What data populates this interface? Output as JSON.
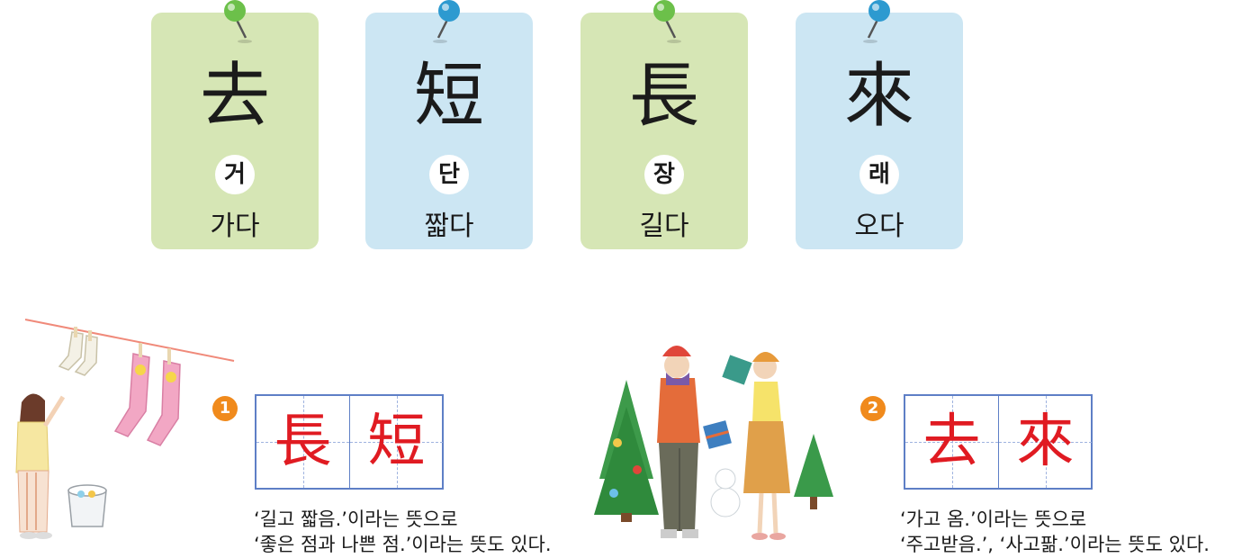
{
  "cards": [
    {
      "hanja": "去",
      "reading": "거",
      "meaning": "가다",
      "color": "#d6e6b5",
      "pin_color": "#6cc04a"
    },
    {
      "hanja": "短",
      "reading": "단",
      "meaning": "짧다",
      "color": "#cce6f3",
      "pin_color": "#2d9ad0"
    },
    {
      "hanja": "長",
      "reading": "장",
      "meaning": "길다",
      "color": "#d6e6b5",
      "pin_color": "#6cc04a"
    },
    {
      "hanja": "來",
      "reading": "래",
      "meaning": "오다",
      "color": "#cce6f3",
      "pin_color": "#2d9ad0"
    }
  ],
  "examples": [
    {
      "number": "1",
      "chars": [
        "長",
        "短"
      ],
      "lines": [
        "‘길고 짧음.’이라는 뜻으로",
        "‘좋은 점과 나쁜 점.’이라는 뜻도 있다."
      ]
    },
    {
      "number": "2",
      "chars": [
        "去",
        "來"
      ],
      "lines": [
        "‘가고 옴.’이라는 뜻으로",
        "‘주고받음.’, ‘사고팖.’이라는 뜻도 있다."
      ]
    }
  ],
  "colors": {
    "badge": "#f08a1c",
    "example_char": "#e01b22",
    "grid": "#5e7fc6"
  },
  "illustrations": [
    "laundry-girl-illustration",
    "winter-couple-illustration"
  ]
}
